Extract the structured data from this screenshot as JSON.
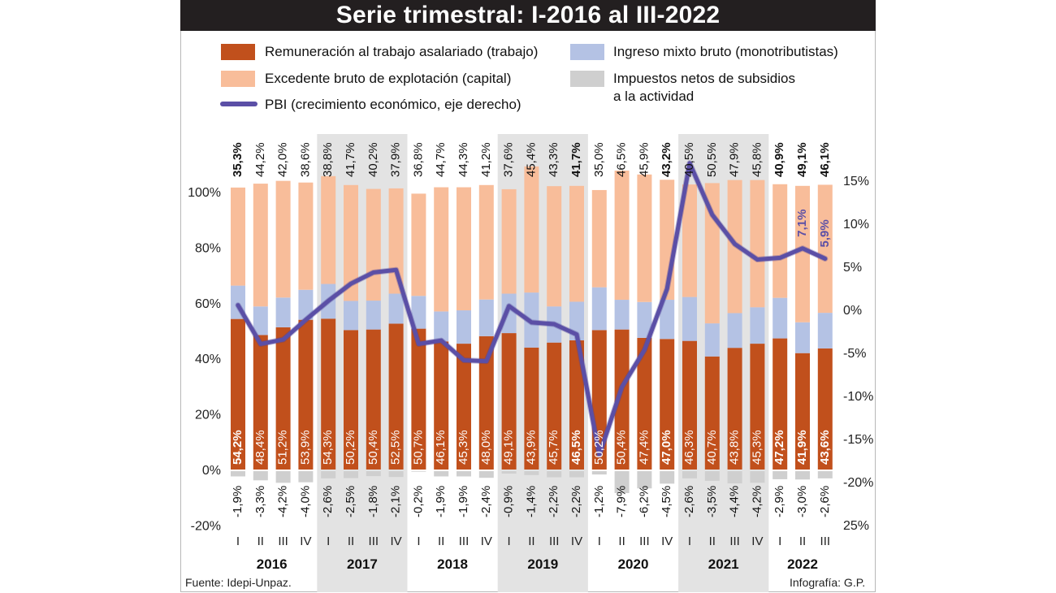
{
  "title": "Serie trimestral: I-2016 al III-2022",
  "legend": {
    "trabajo": "Remuneración al trabajo asalariado (trabajo)",
    "capital": "Excedente bruto de explotación (capital)",
    "pbi": "PBI (crecimiento económico, eje derecho)",
    "mixto": "Ingreso mixto bruto (monotributistas)",
    "impuestos_1": "Impuestos netos de subsidios",
    "impuestos_2": "a la actividad"
  },
  "colors": {
    "trabajo": "#c1501c",
    "capital": "#f8bd9a",
    "mixto": "#b4c2e4",
    "impuestos": "#cfcfcf",
    "pbi": "#5b4fa6",
    "shade": "#e3e3e3"
  },
  "source": "Fuente: Idepi-Unpaz.",
  "credit": "Infografía: G.P.",
  "chart_data": {
    "type": "bar",
    "stacked": true,
    "x_quarters": [
      "I",
      "II",
      "III",
      "IV",
      "I",
      "II",
      "III",
      "IV",
      "I",
      "II",
      "III",
      "IV",
      "I",
      "II",
      "III",
      "IV",
      "I",
      "II",
      "III",
      "IV",
      "I",
      "II",
      "III",
      "IV",
      "I",
      "II",
      "III"
    ],
    "years": [
      "2016",
      "2017",
      "2018",
      "2019",
      "2020",
      "2021",
      "2022"
    ],
    "shaded_years": [
      "2017",
      "2019",
      "2021"
    ],
    "y_left_ticks": [
      "100%",
      "80%",
      "60%",
      "40%",
      "20%",
      "0%",
      "-20%"
    ],
    "y_left_range": [
      -20,
      100
    ],
    "y_right_ticks": [
      "15%",
      "10%",
      "5%",
      "0%",
      "-5%",
      "-10%",
      "-15%",
      "-20%",
      "25%"
    ],
    "y_right_range": [
      -25,
      15
    ],
    "series": [
      {
        "name": "Remuneración al trabajo asalariado (trabajo)",
        "key": "trabajo",
        "values": [
          54.2,
          48.4,
          51.2,
          53.9,
          54.3,
          50.2,
          50.4,
          52.5,
          50.7,
          46.1,
          45.3,
          48.0,
          49.1,
          43.9,
          45.7,
          46.5,
          50.2,
          50.4,
          47.4,
          47.0,
          46.3,
          40.7,
          43.8,
          45.3,
          47.2,
          41.9,
          43.6
        ],
        "labels": [
          "54,2%",
          "48,4%",
          "51,2%",
          "53,9%",
          "54,3%",
          "50,2%",
          "50,4%",
          "52,5%",
          "50,7%",
          "46,1%",
          "45,3%",
          "48,0%",
          "49,1%",
          "43,9%",
          "45,7%",
          "46,5%",
          "50,2%",
          "50,4%",
          "47,4%",
          "47,0%",
          "46,3%",
          "40,7%",
          "43,8%",
          "45,3%",
          "47,2%",
          "41,9%",
          "43,6%"
        ],
        "bold": [
          true,
          false,
          false,
          false,
          false,
          false,
          false,
          false,
          false,
          false,
          false,
          false,
          false,
          false,
          false,
          true,
          false,
          false,
          false,
          true,
          false,
          false,
          false,
          false,
          true,
          true,
          true
        ]
      },
      {
        "name": "Ingreso mixto bruto (monotributistas)",
        "key": "mixto",
        "values": [
          12.0,
          10.3,
          10.7,
          10.8,
          12.5,
          10.5,
          10.4,
          10.8,
          11.8,
          10.8,
          12.0,
          13.2,
          14.2,
          19.8,
          13.0,
          13.9,
          15.4,
          10.7,
          12.9,
          14.1,
          15.8,
          11.9,
          12.5,
          13.1,
          14.6,
          11.1,
          12.8
        ]
      },
      {
        "name": "Excedente bruto de explotación (capital)",
        "key": "capital",
        "values": [
          35.3,
          44.2,
          42.0,
          38.6,
          38.8,
          41.7,
          40.2,
          37.9,
          36.8,
          44.7,
          44.3,
          41.2,
          37.6,
          45.4,
          43.3,
          41.7,
          35.0,
          46.5,
          45.9,
          43.2,
          40.5,
          50.5,
          47.9,
          45.8,
          40.9,
          49.1,
          46.1
        ],
        "labels": [
          "35,3%",
          "44,2%",
          "42,0%",
          "38,6%",
          "38,8%",
          "41,7%",
          "40,2%",
          "37,9%",
          "36,8%",
          "44,7%",
          "44,3%",
          "41,2%",
          "37,6%",
          "45,4%",
          "43,3%",
          "41,7%",
          "35,0%",
          "46,5%",
          "45,9%",
          "43,2%",
          "40,5%",
          "50,5%",
          "47,9%",
          "45,8%",
          "40,9%",
          "49,1%",
          "46,1%"
        ],
        "bold": [
          true,
          false,
          false,
          false,
          false,
          false,
          false,
          false,
          false,
          false,
          false,
          false,
          false,
          false,
          false,
          true,
          false,
          false,
          false,
          true,
          false,
          false,
          false,
          false,
          true,
          true,
          true
        ]
      },
      {
        "name": "Impuestos netos de subsidios a la actividad",
        "key": "impuestos",
        "values": [
          -1.9,
          -3.3,
          -4.2,
          -4.0,
          -2.6,
          -2.5,
          -1.8,
          -2.1,
          -0.2,
          -1.9,
          -1.9,
          -2.4,
          -0.9,
          -1.4,
          -2.2,
          -2.2,
          -1.2,
          -7.9,
          -6.2,
          -4.5,
          -2.6,
          -3.5,
          -4.4,
          -4.2,
          -2.9,
          -3.0,
          -2.6
        ],
        "labels": [
          "-1,9%",
          "-3,3%",
          "-4,2%",
          "-4,0%",
          "-2,6%",
          "-2,5%",
          "-1,8%",
          "-2,1%",
          "-0,2%",
          "-1,9%",
          "-1,9%",
          "-2,4%",
          "-0,9%",
          "-1,4%",
          "-2,2%",
          "-2,2%",
          "-1,2%",
          "-7,9%",
          "-6,2%",
          "-4,5%",
          "-2,6%",
          "-3,5%",
          "-4,4%",
          "-4,2%",
          "-2,9%",
          "-3,0%",
          "-2,6%"
        ]
      },
      {
        "name": "PBI (crecimiento económico, eje derecho)",
        "key": "pbi",
        "type": "line",
        "axis": "right",
        "values": [
          0.5,
          -4.0,
          -3.5,
          -1.2,
          1.0,
          3.0,
          4.3,
          4.6,
          -4.0,
          -3.6,
          -5.9,
          -6.0,
          0.4,
          -1.5,
          -1.7,
          -2.9,
          -16.9,
          -9.0,
          -4.7,
          2.4,
          17.0,
          11.0,
          7.6,
          5.8,
          6.0,
          7.1,
          5.9
        ],
        "annotations": [
          {
            "index": 25,
            "text": "7,1%"
          },
          {
            "index": 26,
            "text": "5,9%"
          }
        ]
      }
    ]
  }
}
